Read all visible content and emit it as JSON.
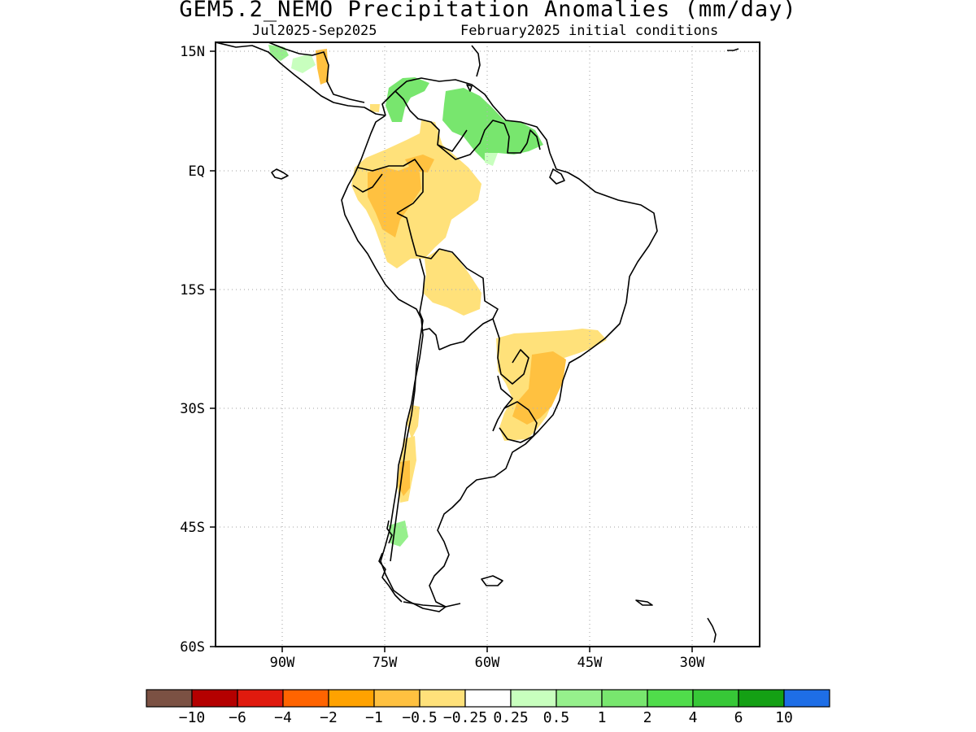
{
  "title": "GEM5.2_NEMO Precipitation Anomalies (mm/day)",
  "subtitle_left": "Jul2025-Sep2025",
  "subtitle_right": "February2025 initial conditions",
  "y_ticks": [
    "15N",
    "EQ",
    "15S",
    "30S",
    "45S",
    "60S"
  ],
  "x_ticks": [
    "90W",
    "75W",
    "60W",
    "45W",
    "30W"
  ],
  "colorbar": {
    "colors": [
      "#7b5143",
      "#b40000",
      "#e01a0e",
      "#ff6400",
      "#ffa200",
      "#ffc140",
      "#ffe17a",
      "#ffffff",
      "#c8ffbe",
      "#96f08c",
      "#78e66e",
      "#50dc4b",
      "#37c837",
      "#14a014",
      "#1e6ee6"
    ],
    "labels": [
      "-10",
      "-6",
      "-4",
      "-2",
      "-1",
      "-0.5",
      "-0.25",
      "0.25",
      "0.5",
      "1",
      "2",
      "4",
      "6",
      "10"
    ]
  },
  "legend_colors": {
    "dry_light": "#ffe17a",
    "dry_mid": "#ffc140",
    "dry_strong": "#ffa200",
    "wet_light": "#96f08c",
    "wet_mid": "#78e66e"
  }
}
